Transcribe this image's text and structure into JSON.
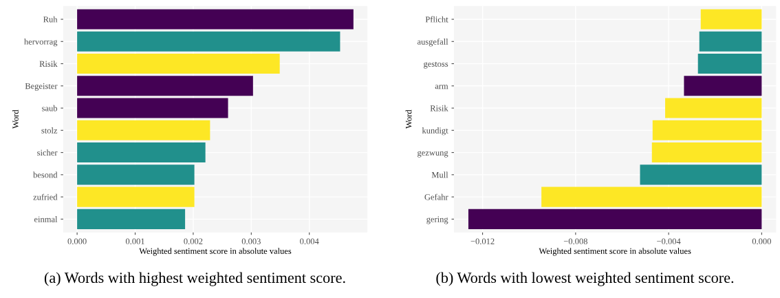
{
  "chart_data": [
    {
      "type": "bar",
      "orientation": "horizontal",
      "xlabel": "Weighted sentiment score in absolute values",
      "ylabel": "Word",
      "categories": [
        "Ruh",
        "hervorrag",
        "Risik",
        "Begeister",
        "saub",
        "stolz",
        "sicher",
        "besond",
        "zufried",
        "einmal"
      ],
      "values": [
        0.00476,
        0.00453,
        0.00349,
        0.00303,
        0.0026,
        0.00229,
        0.00221,
        0.00202,
        0.00202,
        0.00186
      ],
      "colors": [
        "#440154",
        "#21908c",
        "#fde725",
        "#440154",
        "#440154",
        "#fde725",
        "#21908c",
        "#21908c",
        "#fde725",
        "#21908c"
      ],
      "xlim": [
        -0.00024,
        0.005
      ],
      "xticks": [
        {
          "value": 0,
          "label": "0.000"
        },
        {
          "value": 0.001,
          "label": "0.001"
        },
        {
          "value": 0.002,
          "label": "0.002"
        },
        {
          "value": 0.003,
          "label": "0.003"
        },
        {
          "value": 0.004,
          "label": "0.004"
        }
      ],
      "grid": true,
      "annotations": [
        "(a) Words with highest weighted sentiment score."
      ]
    },
    {
      "type": "bar",
      "orientation": "horizontal",
      "xlabel": "Weighted sentiment score in absolute values",
      "ylabel": "Word",
      "categories": [
        "Pflicht",
        "ausgefall",
        "gestoss",
        "arm",
        "Risik",
        "kundigt",
        "gezwung",
        "Mull",
        "Gefahr",
        "gering"
      ],
      "values": [
        -0.00262,
        -0.00268,
        -0.00274,
        -0.00334,
        -0.00415,
        -0.00469,
        -0.00472,
        -0.00523,
        -0.00947,
        -0.01261
      ],
      "colors": [
        "#fde725",
        "#21908c",
        "#21908c",
        "#440154",
        "#fde725",
        "#fde725",
        "#fde725",
        "#21908c",
        "#fde725",
        "#440154"
      ],
      "xlim": [
        -0.01323,
        0.00062
      ],
      "xticks": [
        {
          "value": -0.012,
          "label": "−0.012"
        },
        {
          "value": -0.008,
          "label": "−0.008"
        },
        {
          "value": -0.004,
          "label": "−0.004"
        },
        {
          "value": 0,
          "label": "0.000"
        }
      ],
      "grid": true,
      "annotations": [
        "(b) Words with lowest weighted sentiment score."
      ]
    }
  ]
}
